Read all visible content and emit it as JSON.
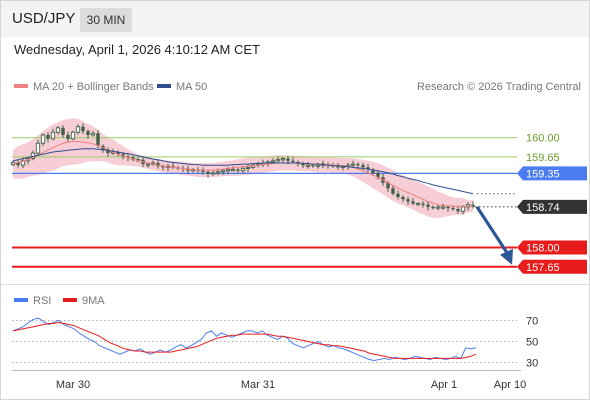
{
  "header": {
    "symbol": "USD/JPY",
    "timeframe": "30 MIN",
    "datetime": "Wednesday, April 1, 2026 4:10:12 AM CET"
  },
  "colors": {
    "candle": "#3f5f46",
    "bollinger_fill": "#f7c6cf",
    "ma20": "#f0807f",
    "ma50": "#2d4f8c",
    "resistance": "#9acd62",
    "pivot": "#4a7df0",
    "support": "#e81c1c",
    "price_tag": "#333333",
    "arrow": "#2b5797",
    "rsi": "#4a7df0",
    "rsi_ma": "#e81c1c"
  },
  "chart_data": [
    {
      "type": "candlestick",
      "title": "",
      "legend": [
        "MA 20 + Bollinger Bands",
        "MA 50"
      ],
      "legend_position": "top-left",
      "source": "Research © 2026 Trading Central",
      "ylim": [
        157.5,
        160.45
      ],
      "x_ticks": [
        "Mar 30",
        "Mar 31",
        "Apr 1",
        "Apr 10"
      ],
      "levels": [
        {
          "value": 160.0,
          "label": "160.00",
          "kind": "resistance"
        },
        {
          "value": 159.65,
          "label": "159.65",
          "kind": "resistance"
        },
        {
          "value": 159.35,
          "label": "159.35",
          "kind": "pivot"
        },
        {
          "value": 158.0,
          "label": "158.00",
          "kind": "support"
        },
        {
          "value": 157.65,
          "label": "157.65",
          "kind": "support"
        }
      ],
      "last_price": {
        "value": 158.74,
        "label": "158.74"
      },
      "forecast_target": 157.65,
      "close": [
        159.55,
        159.5,
        159.58,
        159.62,
        159.72,
        159.9,
        160.05,
        159.98,
        160.1,
        160.18,
        160.05,
        159.98,
        160.1,
        160.2,
        160.12,
        160.05,
        160.08,
        159.85,
        159.78,
        159.72,
        159.74,
        159.7,
        159.66,
        159.64,
        159.6,
        159.6,
        159.52,
        159.52,
        159.54,
        159.48,
        159.46,
        159.48,
        159.46,
        159.45,
        159.43,
        159.4,
        159.42,
        159.4,
        159.38,
        159.34,
        159.36,
        159.38,
        159.4,
        159.42,
        159.42,
        159.4,
        159.44,
        159.46,
        159.5,
        159.52,
        159.54,
        159.56,
        159.58,
        159.6,
        159.62,
        159.58,
        159.56,
        159.52,
        159.5,
        159.5,
        159.48,
        159.5,
        159.52,
        159.5,
        159.48,
        159.46,
        159.48,
        159.5,
        159.52,
        159.5,
        159.46,
        159.42,
        159.36,
        159.28,
        159.18,
        159.08,
        158.98,
        158.92,
        158.88,
        158.84,
        158.8,
        158.8,
        158.78,
        158.74,
        158.72,
        158.74,
        158.74,
        158.72,
        158.7,
        158.66,
        158.74,
        158.78,
        158.74
      ],
      "ma20": [
        159.52,
        159.55,
        159.57,
        159.6,
        159.64,
        159.68,
        159.73,
        159.78,
        159.82,
        159.86,
        159.9,
        159.92,
        159.93,
        159.93,
        159.92,
        159.91,
        159.89,
        159.86,
        159.82,
        159.78,
        159.74,
        159.7,
        159.67,
        159.64,
        159.61,
        159.58,
        159.56,
        159.54,
        159.52,
        159.5,
        159.48,
        159.47,
        159.46,
        159.45,
        159.44,
        159.43,
        159.42,
        159.41,
        159.41,
        159.41,
        159.41,
        159.42,
        159.43,
        159.44,
        159.45,
        159.46,
        159.47,
        159.48,
        159.49,
        159.5,
        159.51,
        159.52,
        159.53,
        159.54,
        159.54,
        159.54,
        159.54,
        159.53,
        159.53,
        159.52,
        159.52,
        159.51,
        159.51,
        159.51,
        159.5,
        159.5,
        159.49,
        159.48,
        159.46,
        159.43,
        159.4,
        159.36,
        159.32,
        159.28,
        159.23,
        159.18,
        159.13,
        159.08,
        159.04,
        159.0,
        158.96,
        158.92,
        158.88,
        158.84,
        158.81,
        158.78,
        158.77,
        158.76,
        158.75,
        158.75,
        158.75,
        158.75,
        158.75
      ],
      "ma50": [
        159.58,
        159.6,
        159.62,
        159.64,
        159.66,
        159.68,
        159.7,
        159.72,
        159.74,
        159.75,
        159.76,
        159.77,
        159.78,
        159.79,
        159.8,
        159.8,
        159.8,
        159.79,
        159.78,
        159.77,
        159.75,
        159.74,
        159.72,
        159.71,
        159.69,
        159.67,
        159.65,
        159.63,
        159.61,
        159.6,
        159.58,
        159.56,
        159.55,
        159.54,
        159.53,
        159.52,
        159.51,
        159.51,
        159.5,
        159.5,
        159.5,
        159.5,
        159.5,
        159.5,
        159.51,
        159.51,
        159.52,
        159.52,
        159.53,
        159.53,
        159.54,
        159.54,
        159.54,
        159.54,
        159.54,
        159.54,
        159.54,
        159.54,
        159.53,
        159.53,
        159.52,
        159.52,
        159.51,
        159.5,
        159.49,
        159.49,
        159.48,
        159.47,
        159.46,
        159.45,
        159.44,
        159.43,
        159.41,
        159.4,
        159.38,
        159.36,
        159.34,
        159.31,
        159.29,
        159.26,
        159.24,
        159.22,
        159.19,
        159.17,
        159.14,
        159.12,
        159.1,
        159.08,
        159.06,
        159.04,
        159.02,
        159.0,
        158.98
      ]
    },
    {
      "type": "line",
      "title": "",
      "legend": [
        "RSI",
        "9MA"
      ],
      "legend_position": "top-left",
      "ylim": [
        24,
        76
      ],
      "y_ticks": [
        70,
        50,
        30
      ],
      "rsi": [
        60,
        62,
        64,
        68,
        71,
        72,
        69,
        66,
        68,
        70,
        66,
        64,
        62,
        58,
        55,
        52,
        50,
        46,
        44,
        42,
        40,
        38,
        40,
        42,
        41,
        43,
        40,
        38,
        40,
        42,
        40,
        42,
        45,
        47,
        44,
        46,
        49,
        52,
        58,
        60,
        55,
        58,
        56,
        54,
        56,
        58,
        60,
        60,
        58,
        60,
        56,
        54,
        52,
        55,
        53,
        48,
        46,
        44,
        46,
        48,
        50,
        47,
        45,
        46,
        44,
        43,
        41,
        39,
        37,
        35,
        33,
        32,
        33,
        34,
        33,
        35,
        34,
        33,
        34,
        36,
        35,
        34,
        33,
        35,
        34,
        33,
        34,
        36,
        34,
        44,
        43,
        44
      ],
      "ma9": [
        60,
        61,
        62,
        63,
        64,
        65,
        66,
        67,
        67,
        68,
        67,
        66,
        65,
        63,
        61,
        59,
        57,
        55,
        52,
        49,
        47,
        45,
        43,
        42,
        41,
        41,
        40,
        40,
        40,
        40,
        40,
        40,
        41,
        42,
        43,
        44,
        45,
        47,
        49,
        51,
        53,
        54,
        55,
        56,
        56,
        57,
        57,
        57,
        57,
        57,
        57,
        56,
        55,
        55,
        54,
        53,
        52,
        51,
        50,
        49,
        48,
        47,
        47,
        46,
        46,
        45,
        44,
        43,
        42,
        41,
        39,
        38,
        37,
        36,
        35,
        34,
        34,
        34,
        34,
        34,
        34,
        34,
        34,
        34,
        34,
        34,
        34,
        34,
        34,
        35,
        36,
        38
      ]
    }
  ]
}
